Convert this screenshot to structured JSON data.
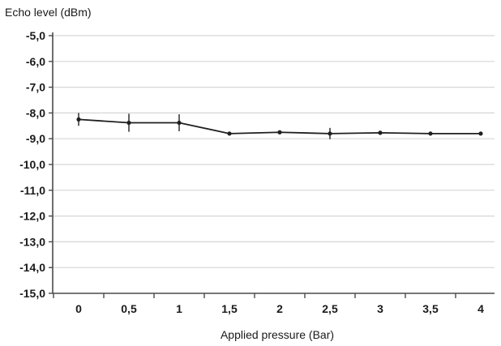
{
  "chart_data": {
    "type": "line",
    "ylabel": "Echo level  (dBm)",
    "xlabel": "Applied pressure (Bar)",
    "categories": [
      "0",
      "0,5",
      "1",
      "1,5",
      "2",
      "2,5",
      "3",
      "3,5",
      "4"
    ],
    "x": [
      0,
      0.5,
      1,
      1.5,
      2,
      2.5,
      3,
      3.5,
      4
    ],
    "y_tick_labels": [
      "-5,0",
      "-6,0",
      "-7,0",
      "-8,0",
      "-9,0",
      "-10,0",
      "-11,0",
      "-12,0",
      "-13,0",
      "-14,0",
      "-15,0"
    ],
    "y_ticks": [
      -5,
      -6,
      -7,
      -8,
      -9,
      -10,
      -11,
      -12,
      -13,
      -14,
      -15
    ],
    "ylim": [
      -15,
      -5
    ],
    "grid": true,
    "series": [
      {
        "values": [
          -8.25,
          -8.38,
          -8.38,
          -8.8,
          -8.75,
          -8.8,
          -8.77,
          -8.8,
          -8.8
        ],
        "error": [
          0.25,
          0.35,
          0.33,
          0.05,
          0.05,
          0.22,
          0.08,
          0.05,
          0.05
        ]
      }
    ],
    "colors": {
      "line": "#202020",
      "grid": "#d6d6d6",
      "axis": "#4a4a4a"
    }
  }
}
